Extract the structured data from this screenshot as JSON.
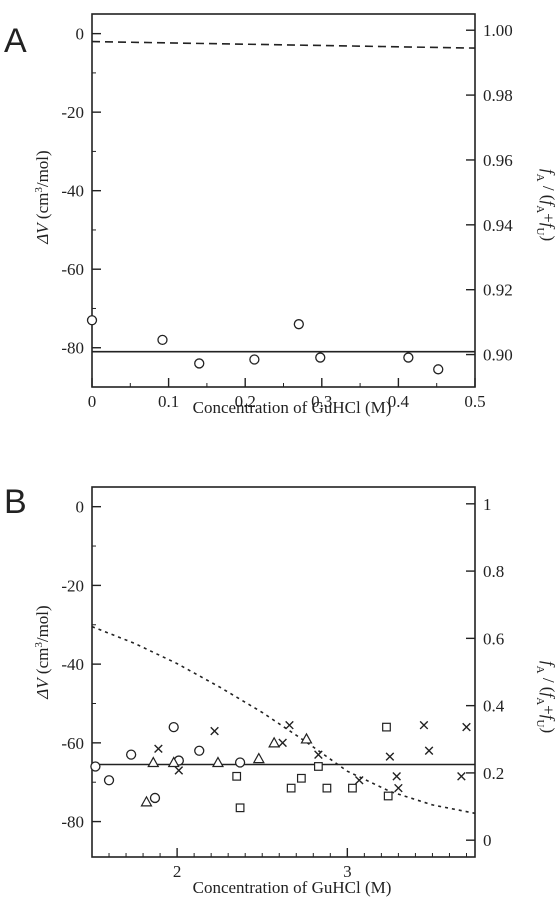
{
  "chart_data": [
    {
      "panel": "A",
      "type": "scatter",
      "xlabel": "Concentration of GuHCl (M)",
      "ylabel_left": "ΔV (cm3/mol)",
      "ylabel_right": "fA / (fA+fU)",
      "xlim": [
        0,
        0.5
      ],
      "ylim_left": [
        -90,
        5
      ],
      "ylim_right": [
        0.89,
        1.005
      ],
      "xticks": [
        0,
        0.1,
        0.2,
        0.3,
        0.4,
        0.5
      ],
      "xtick_labels": [
        "0",
        "0.1",
        "0.2",
        "0.3",
        "0.4",
        "0.5"
      ],
      "yticks_left": [
        0,
        -20,
        -40,
        -60,
        -80
      ],
      "ytick_labels_left": [
        "0",
        "-20",
        "-40",
        "-60",
        "-80"
      ],
      "yticks_right": [
        1.0,
        0.98,
        0.96,
        0.94,
        0.92,
        0.9
      ],
      "ytick_labels_right": [
        "1.00",
        "0.98",
        "0.96",
        "0.94",
        "0.92",
        "0.90"
      ],
      "circles": [
        {
          "x": 0.0,
          "y": -73
        },
        {
          "x": 0.092,
          "y": -78
        },
        {
          "x": 0.14,
          "y": -84
        },
        {
          "x": 0.212,
          "y": -83
        },
        {
          "x": 0.27,
          "y": -74
        },
        {
          "x": 0.298,
          "y": -82.5
        },
        {
          "x": 0.413,
          "y": -82.5
        },
        {
          "x": 0.452,
          "y": -85.5
        }
      ],
      "solid_line_left": [
        [
          0,
          -81
        ],
        [
          0.5,
          -81
        ]
      ],
      "dashed_line_right": [
        [
          0,
          0.9965
        ],
        [
          0.5,
          0.9945
        ]
      ]
    },
    {
      "panel": "B",
      "type": "scatter",
      "xlabel": "Concentration of GuHCl (M)",
      "ylabel_left": "ΔV (cm3/mol)",
      "ylabel_right": "fA / (fA+fU)",
      "xlim": [
        1.5,
        3.75
      ],
      "ylim_left": [
        -89,
        5
      ],
      "ylim_right": [
        -0.05,
        1.05
      ],
      "xticks": [
        2,
        3
      ],
      "xtick_labels": [
        "2",
        "3"
      ],
      "yticks_left": [
        0,
        -20,
        -40,
        -60,
        -80
      ],
      "ytick_labels_left": [
        "0",
        "-20",
        "-40",
        "-60",
        "-80"
      ],
      "yticks_right": [
        1.0,
        0.8,
        0.6,
        0.4,
        0.2,
        0.0
      ],
      "ytick_labels_right": [
        "1",
        "0.8",
        "0.6",
        "0.4",
        "0.2",
        "0"
      ],
      "circles": [
        {
          "x": 1.52,
          "y": -66
        },
        {
          "x": 1.6,
          "y": -69.5
        },
        {
          "x": 1.73,
          "y": -63
        },
        {
          "x": 1.87,
          "y": -74
        },
        {
          "x": 1.98,
          "y": -56
        },
        {
          "x": 2.01,
          "y": -64.5
        },
        {
          "x": 2.13,
          "y": -62
        },
        {
          "x": 2.37,
          "y": -65
        }
      ],
      "triangles": [
        {
          "x": 1.82,
          "y": -75
        },
        {
          "x": 1.86,
          "y": -65
        },
        {
          "x": 1.98,
          "y": -65
        },
        {
          "x": 2.24,
          "y": -65
        },
        {
          "x": 2.48,
          "y": -64
        },
        {
          "x": 2.57,
          "y": -60
        },
        {
          "x": 2.76,
          "y": -59
        }
      ],
      "squares": [
        {
          "x": 2.35,
          "y": -68.5
        },
        {
          "x": 2.37,
          "y": -76.5
        },
        {
          "x": 2.67,
          "y": -71.5
        },
        {
          "x": 2.73,
          "y": -69
        },
        {
          "x": 2.83,
          "y": -66
        },
        {
          "x": 2.88,
          "y": -71.5
        },
        {
          "x": 3.03,
          "y": -71.5
        },
        {
          "x": 3.23,
          "y": -56
        },
        {
          "x": 3.24,
          "y": -73.5
        }
      ],
      "crosses": [
        {
          "x": 1.89,
          "y": -61.5
        },
        {
          "x": 2.01,
          "y": -67
        },
        {
          "x": 2.22,
          "y": -57
        },
        {
          "x": 2.62,
          "y": -60
        },
        {
          "x": 2.66,
          "y": -55.5
        },
        {
          "x": 2.83,
          "y": -63
        },
        {
          "x": 3.07,
          "y": -69.5
        },
        {
          "x": 3.25,
          "y": -63.5
        },
        {
          "x": 3.29,
          "y": -68.5
        },
        {
          "x": 3.3,
          "y": -71.5
        },
        {
          "x": 3.45,
          "y": -55.5
        },
        {
          "x": 3.48,
          "y": -62
        },
        {
          "x": 3.67,
          "y": -68.5
        },
        {
          "x": 3.7,
          "y": -56
        }
      ],
      "solid_line_left": [
        [
          1.5,
          -65.5
        ],
        [
          3.75,
          -65.5
        ]
      ],
      "dotted_line_right": [
        [
          1.5,
          0.635
        ],
        [
          1.75,
          0.585
        ],
        [
          2.0,
          0.525
        ],
        [
          2.25,
          0.455
        ],
        [
          2.5,
          0.38
        ],
        [
          2.75,
          0.295
        ],
        [
          3.0,
          0.205
        ],
        [
          3.25,
          0.145
        ],
        [
          3.5,
          0.105
        ],
        [
          3.75,
          0.08
        ]
      ]
    }
  ]
}
